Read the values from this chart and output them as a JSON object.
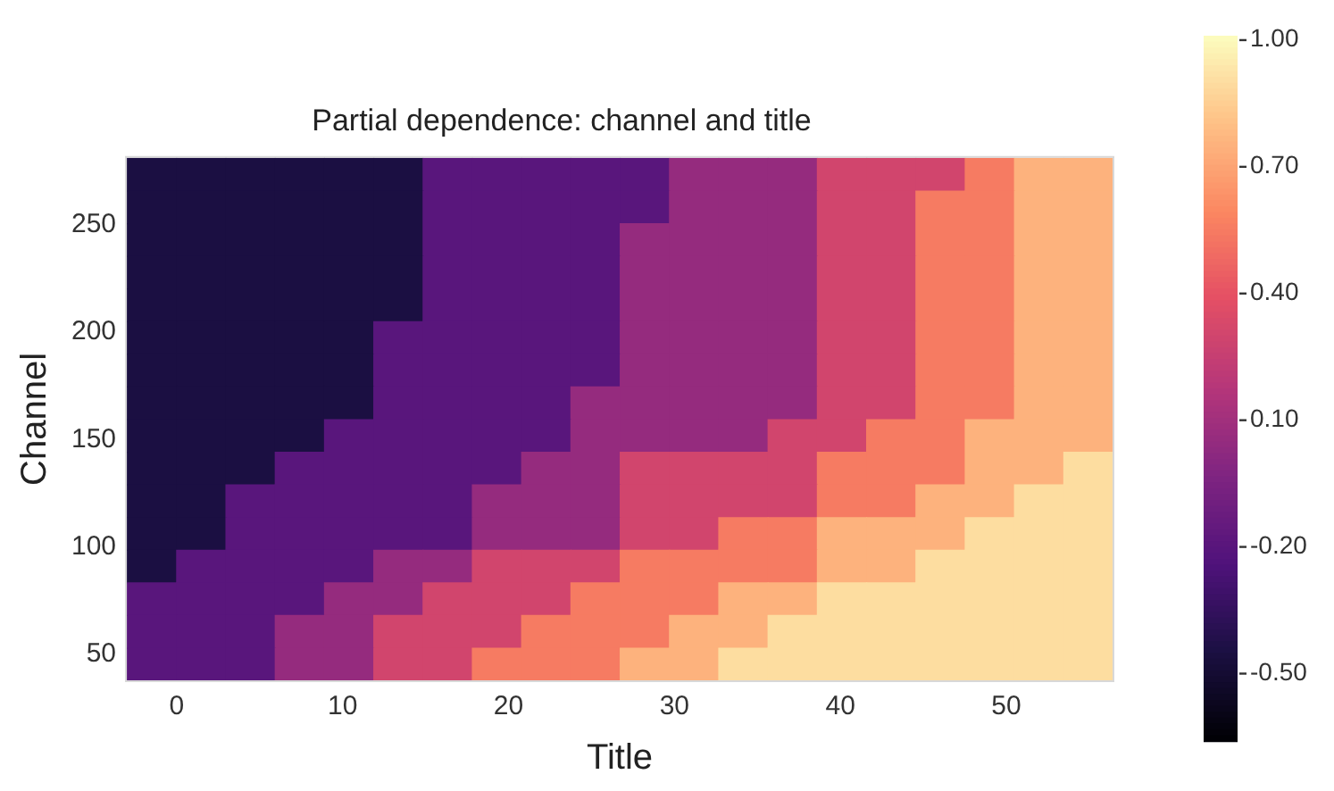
{
  "chart_data": {
    "type": "heatmap",
    "title": "Partial dependence: channel and title",
    "xlabel": "Title",
    "ylabel": "Channel",
    "xlim": [
      -3,
      56.4
    ],
    "xticks": [
      0,
      10,
      20,
      30,
      40,
      50
    ],
    "ylim": [
      38,
      281
    ],
    "yticks": [
      50,
      100,
      150,
      200,
      250
    ],
    "clim": [
      -0.66,
      1.01
    ],
    "cticks": [
      {
        "value": 1,
        "label": "1.00"
      },
      {
        "value": 0.7,
        "label": "0.70"
      },
      {
        "value": 0.4,
        "label": "0.40"
      },
      {
        "value": 0.1,
        "label": "0.10"
      },
      {
        "value": -0.2,
        "label": "-0.20"
      },
      {
        "value": -0.5,
        "label": "-0.50"
      }
    ],
    "cells": [
      [
        -0.45,
        -0.45,
        -0.45,
        -0.45,
        -0.45,
        -0.45,
        -0.2,
        -0.2,
        -0.2,
        -0.2,
        -0.2,
        0.05,
        0.05,
        0.05,
        0.3,
        0.3,
        0.3,
        0.55,
        0.75,
        0.75
      ],
      [
        -0.45,
        -0.45,
        -0.45,
        -0.45,
        -0.45,
        -0.45,
        -0.2,
        -0.2,
        -0.2,
        -0.2,
        -0.2,
        0.05,
        0.05,
        0.05,
        0.3,
        0.3,
        0.55,
        0.55,
        0.75,
        0.75
      ],
      [
        -0.45,
        -0.45,
        -0.45,
        -0.45,
        -0.45,
        -0.45,
        -0.2,
        -0.2,
        -0.2,
        -0.2,
        0.05,
        0.05,
        0.05,
        0.05,
        0.3,
        0.3,
        0.55,
        0.55,
        0.75,
        0.75
      ],
      [
        -0.45,
        -0.45,
        -0.45,
        -0.45,
        -0.45,
        -0.45,
        -0.2,
        -0.2,
        -0.2,
        -0.2,
        0.05,
        0.05,
        0.05,
        0.05,
        0.3,
        0.3,
        0.55,
        0.55,
        0.75,
        0.75
      ],
      [
        -0.45,
        -0.45,
        -0.45,
        -0.45,
        -0.45,
        -0.45,
        -0.2,
        -0.2,
        -0.2,
        -0.2,
        0.05,
        0.05,
        0.05,
        0.05,
        0.3,
        0.3,
        0.55,
        0.55,
        0.75,
        0.75
      ],
      [
        -0.45,
        -0.45,
        -0.45,
        -0.45,
        -0.45,
        -0.2,
        -0.2,
        -0.2,
        -0.2,
        -0.2,
        0.05,
        0.05,
        0.05,
        0.05,
        0.3,
        0.3,
        0.55,
        0.55,
        0.75,
        0.75
      ],
      [
        -0.45,
        -0.45,
        -0.45,
        -0.45,
        -0.45,
        -0.2,
        -0.2,
        -0.2,
        -0.2,
        -0.2,
        0.05,
        0.05,
        0.05,
        0.05,
        0.3,
        0.3,
        0.55,
        0.55,
        0.75,
        0.75
      ],
      [
        -0.45,
        -0.45,
        -0.45,
        -0.45,
        -0.45,
        -0.2,
        -0.2,
        -0.2,
        -0.2,
        0.05,
        0.05,
        0.05,
        0.05,
        0.05,
        0.3,
        0.3,
        0.55,
        0.55,
        0.75,
        0.75
      ],
      [
        -0.45,
        -0.45,
        -0.45,
        -0.45,
        -0.2,
        -0.2,
        -0.2,
        -0.2,
        -0.2,
        0.05,
        0.05,
        0.05,
        0.05,
        0.3,
        0.3,
        0.55,
        0.55,
        0.75,
        0.75,
        0.75
      ],
      [
        -0.45,
        -0.45,
        -0.45,
        -0.2,
        -0.2,
        -0.2,
        -0.2,
        -0.2,
        0.05,
        0.05,
        0.3,
        0.3,
        0.3,
        0.3,
        0.55,
        0.55,
        0.55,
        0.75,
        0.75,
        0.9
      ],
      [
        -0.45,
        -0.45,
        -0.2,
        -0.2,
        -0.2,
        -0.2,
        -0.2,
        0.05,
        0.05,
        0.05,
        0.3,
        0.3,
        0.3,
        0.3,
        0.55,
        0.55,
        0.75,
        0.75,
        0.9,
        0.9
      ],
      [
        -0.45,
        -0.45,
        -0.2,
        -0.2,
        -0.2,
        -0.2,
        -0.2,
        0.05,
        0.05,
        0.05,
        0.3,
        0.3,
        0.55,
        0.55,
        0.75,
        0.75,
        0.75,
        0.9,
        0.9,
        0.9
      ],
      [
        -0.45,
        -0.2,
        -0.2,
        -0.2,
        -0.2,
        0.05,
        0.05,
        0.3,
        0.3,
        0.3,
        0.55,
        0.55,
        0.55,
        0.55,
        0.75,
        0.75,
        0.9,
        0.9,
        0.9,
        0.9
      ],
      [
        -0.2,
        -0.2,
        -0.2,
        -0.2,
        0.05,
        0.05,
        0.3,
        0.3,
        0.3,
        0.55,
        0.55,
        0.55,
        0.75,
        0.75,
        0.9,
        0.9,
        0.9,
        0.9,
        0.9,
        0.9
      ],
      [
        -0.2,
        -0.2,
        -0.2,
        0.05,
        0.05,
        0.3,
        0.3,
        0.3,
        0.55,
        0.55,
        0.55,
        0.75,
        0.75,
        0.9,
        0.9,
        0.9,
        0.9,
        0.9,
        0.9,
        0.9
      ],
      [
        -0.2,
        -0.2,
        -0.2,
        0.05,
        0.05,
        0.3,
        0.3,
        0.55,
        0.55,
        0.55,
        0.75,
        0.75,
        0.9,
        0.9,
        0.9,
        0.9,
        0.9,
        0.9,
        0.9,
        0.9
      ]
    ]
  }
}
